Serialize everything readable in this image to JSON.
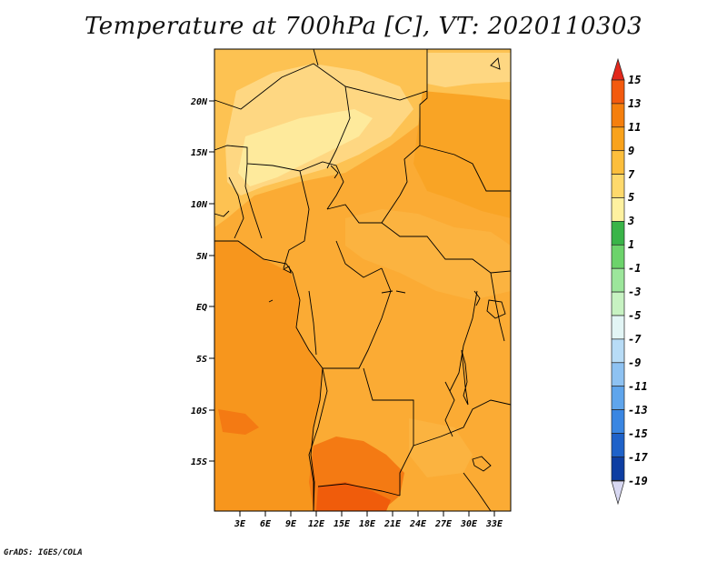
{
  "title": "Temperature at 700hPa [C], VT: 2020110303",
  "credit": "GrADS: IGES/COLA",
  "map": {
    "lat_labels": [
      "20N",
      "15N",
      "10N",
      "5N",
      "EQ",
      "5S",
      "10S",
      "15S"
    ],
    "lon_labels": [
      "3E",
      "6E",
      "9E",
      "12E",
      "15E",
      "18E",
      "21E",
      "24E",
      "27E",
      "30E",
      "33E"
    ],
    "units": "C"
  },
  "colorbar": {
    "labels": [
      "15",
      "13",
      "11",
      "9",
      "7",
      "5",
      "3",
      "1",
      "-1",
      "-3",
      "-5",
      "-7",
      "-9",
      "-11",
      "-13",
      "-15",
      "-17",
      "-19"
    ],
    "colors": [
      "#e2281c",
      "#f35a0e",
      "#f57f0d",
      "#f9a21b",
      "#fcbe3c",
      "#fed96c",
      "#fef1a0",
      "#39b448",
      "#6cd36b",
      "#9ce69b",
      "#c7f2c2",
      "#e2f5f5",
      "#b8dcf6",
      "#8ec2f2",
      "#5fa5ec",
      "#3a86e2",
      "#1f62c9",
      "#0e3ea2",
      "#0a1e6a",
      "#d8d8f2"
    ]
  }
}
